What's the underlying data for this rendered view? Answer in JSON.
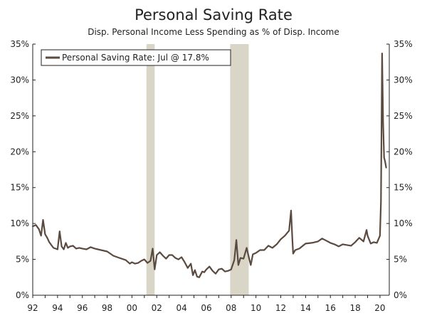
{
  "chart_data": {
    "type": "line",
    "title": "Personal Saving Rate",
    "subtitle": "Disp. Personal Income Less Spending as % of Disp. Income",
    "xlabel": "",
    "ylabel": "",
    "x_range": [
      1992.0,
      2020.75
    ],
    "ylim": [
      0,
      35
    ],
    "y_ticks": [
      0,
      5,
      10,
      15,
      20,
      25,
      30,
      35
    ],
    "y_tick_labels": [
      "0%",
      "5%",
      "10%",
      "15%",
      "20%",
      "25%",
      "30%",
      "35%"
    ],
    "x_ticks": [
      1992,
      1994,
      1996,
      1998,
      2000,
      2002,
      2004,
      2006,
      2008,
      2010,
      2012,
      2014,
      2016,
      2018,
      2020
    ],
    "x_tick_labels": [
      "92",
      "94",
      "96",
      "98",
      "00",
      "02",
      "04",
      "06",
      "08",
      "10",
      "12",
      "14",
      "16",
      "18",
      "20"
    ],
    "recessions": [
      {
        "start": 2001.17,
        "end": 2001.83
      },
      {
        "start": 2007.92,
        "end": 2009.42
      }
    ],
    "legend": {
      "position": "top-left",
      "label": "Personal Saving Rate: Jul @ 17.8%"
    },
    "colors": {
      "line": "#5a4a3f",
      "recession": "#d9d5c7",
      "axis": "#222222"
    },
    "series": [
      {
        "name": "Personal Saving Rate: Jul @ 17.8%",
        "x": [
          1992.0,
          1992.25,
          1992.5,
          1992.67,
          1992.83,
          1993.0,
          1993.17,
          1993.33,
          1993.5,
          1993.67,
          1993.83,
          1994.0,
          1994.17,
          1994.33,
          1994.5,
          1994.67,
          1994.83,
          1995.0,
          1995.25,
          1995.5,
          1995.75,
          1996.0,
          1996.33,
          1996.67,
          1997.0,
          1997.5,
          1998.0,
          1998.5,
          1999.0,
          1999.5,
          1999.83,
          2000.0,
          2000.25,
          2000.5,
          2000.75,
          2001.0,
          2001.25,
          2001.5,
          2001.67,
          2001.83,
          2002.0,
          2002.25,
          2002.5,
          2002.75,
          2003.0,
          2003.25,
          2003.5,
          2003.75,
          2004.0,
          2004.25,
          2004.5,
          2004.75,
          2004.92,
          2005.08,
          2005.25,
          2005.42,
          2005.67,
          2005.83,
          2006.0,
          2006.25,
          2006.5,
          2006.75,
          2007.0,
          2007.25,
          2007.5,
          2007.75,
          2008.0,
          2008.25,
          2008.42,
          2008.58,
          2008.75,
          2009.0,
          2009.25,
          2009.42,
          2009.58,
          2009.75,
          2010.0,
          2010.33,
          2010.67,
          2011.0,
          2011.33,
          2011.67,
          2012.0,
          2012.33,
          2012.67,
          2012.83,
          2012.92,
          2013.0,
          2013.17,
          2013.5,
          2014.0,
          2014.5,
          2015.0,
          2015.33,
          2015.67,
          2016.0,
          2016.33,
          2016.67,
          2017.0,
          2017.33,
          2017.67,
          2018.0,
          2018.33,
          2018.67,
          2018.92,
          2019.0,
          2019.25,
          2019.5,
          2019.75,
          2020.0,
          2020.08,
          2020.17,
          2020.25,
          2020.33,
          2020.42,
          2020.5
        ],
        "values": [
          9.6,
          9.8,
          9.2,
          8.3,
          10.5,
          8.5,
          8.0,
          7.4,
          7.0,
          6.6,
          6.5,
          6.4,
          8.9,
          6.8,
          6.4,
          7.3,
          6.6,
          6.8,
          6.9,
          6.5,
          6.6,
          6.5,
          6.4,
          6.7,
          6.5,
          6.3,
          6.1,
          5.5,
          5.2,
          4.9,
          4.4,
          4.6,
          4.4,
          4.5,
          4.8,
          5.0,
          4.5,
          4.8,
          6.5,
          3.6,
          5.6,
          6.0,
          5.5,
          5.1,
          5.6,
          5.6,
          5.2,
          5.0,
          5.3,
          4.6,
          3.8,
          4.4,
          2.8,
          3.5,
          2.6,
          2.5,
          3.3,
          3.2,
          3.6,
          4.0,
          3.4,
          3.0,
          3.6,
          3.7,
          3.3,
          3.4,
          3.6,
          4.9,
          7.7,
          4.2,
          5.2,
          5.1,
          6.6,
          5.3,
          4.2,
          5.7,
          5.9,
          6.3,
          6.3,
          6.9,
          6.6,
          7.1,
          7.8,
          8.3,
          9.0,
          11.8,
          8.2,
          5.8,
          6.3,
          6.5,
          7.2,
          7.3,
          7.5,
          7.9,
          7.6,
          7.3,
          7.1,
          6.8,
          7.1,
          7.0,
          6.9,
          7.4,
          8.0,
          7.5,
          9.1,
          8.3,
          7.2,
          7.4,
          7.3,
          8.3,
          13.0,
          33.7,
          24.2,
          19.2,
          18.6,
          17.8
        ]
      }
    ]
  }
}
